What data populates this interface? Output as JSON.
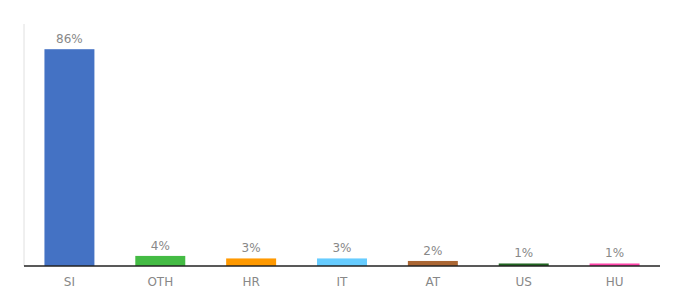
{
  "chart_data": {
    "type": "bar",
    "categories": [
      "SI",
      "OTH",
      "HR",
      "IT",
      "AT",
      "US",
      "HU"
    ],
    "values": [
      86,
      4,
      3,
      3,
      2,
      1,
      1
    ],
    "value_labels": [
      "86%",
      "4%",
      "3%",
      "3%",
      "2%",
      "1%",
      "1%"
    ],
    "colors": [
      "#4472c4",
      "#44bb44",
      "#ff9900",
      "#66ccff",
      "#aa6633",
      "#226622",
      "#ff44aa"
    ],
    "ylim": [
      0,
      96
    ],
    "data_labels": true,
    "tick_labels": "x",
    "grid": false
  }
}
